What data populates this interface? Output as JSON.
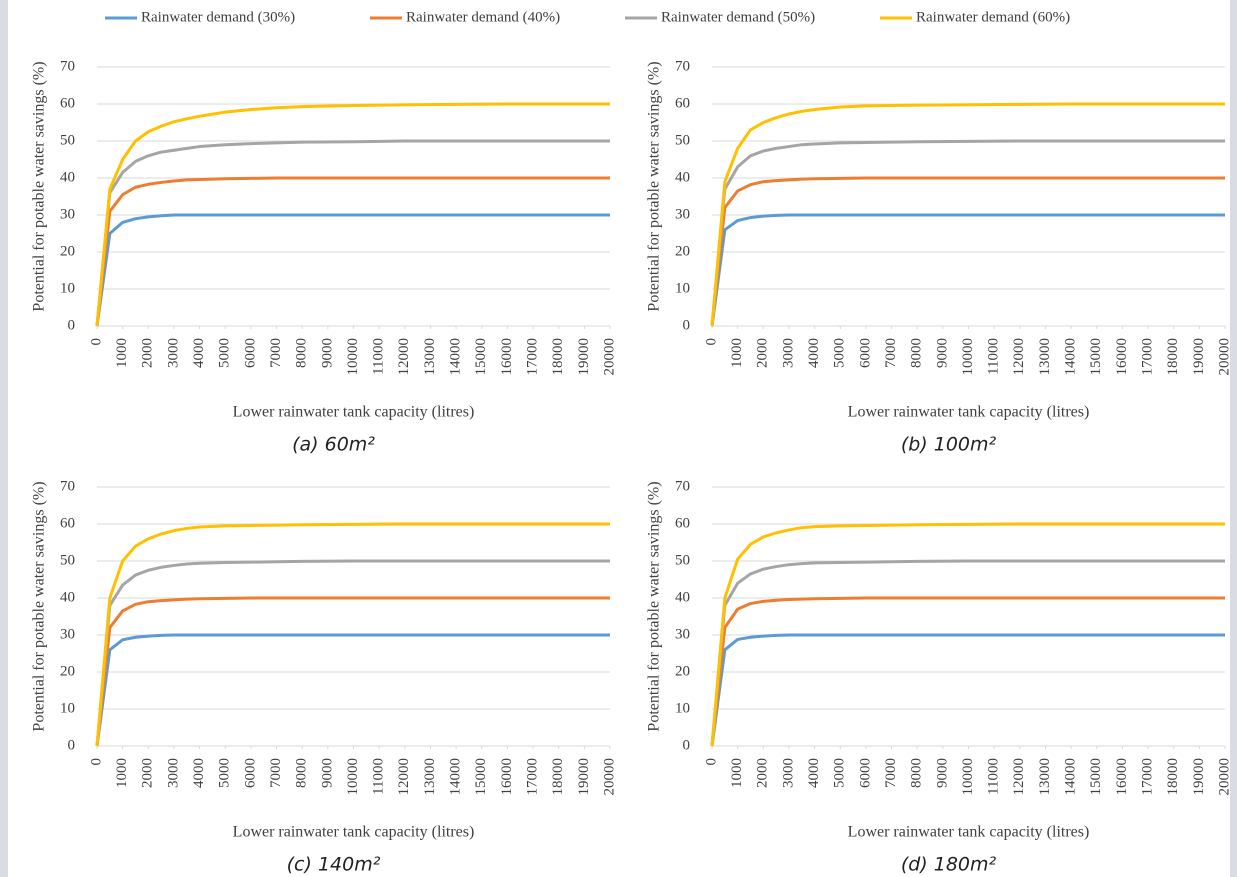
{
  "chart_data": [
    {
      "type": "line",
      "caption": "(a) 60m²",
      "x_label": "Lower rainwater tank capacity (litres)",
      "y_label": "Potential for potable water savings (%)",
      "x": [
        0,
        500,
        1000,
        1500,
        2000,
        2500,
        3000,
        3500,
        4000,
        5000,
        6000,
        7000,
        8000,
        10000,
        12000,
        14000,
        16000,
        18000,
        20000
      ],
      "xlim": [
        0,
        20000
      ],
      "xticks": [
        0,
        1000,
        2000,
        3000,
        4000,
        5000,
        6000,
        7000,
        8000,
        9000,
        10000,
        11000,
        12000,
        13000,
        14000,
        15000,
        16000,
        17000,
        18000,
        19000,
        20000
      ],
      "ylim": [
        0,
        70
      ],
      "yticks": [
        0,
        10,
        20,
        30,
        40,
        50,
        60,
        70
      ],
      "grid": true,
      "series": [
        {
          "name": "Rainwater demand (30%)",
          "color": "#5b9bd5",
          "values": [
            0,
            25,
            28,
            29,
            29.5,
            29.8,
            30,
            30,
            30,
            30,
            30,
            30,
            30,
            30,
            30,
            30,
            30,
            30,
            30
          ]
        },
        {
          "name": "Rainwater demand (40%)",
          "color": "#ed7d31",
          "values": [
            0,
            31,
            35.5,
            37.5,
            38.3,
            38.8,
            39.2,
            39.5,
            39.6,
            39.8,
            39.9,
            40,
            40,
            40,
            40,
            40,
            40,
            40,
            40
          ]
        },
        {
          "name": "Rainwater demand (50%)",
          "color": "#a5a5a5",
          "values": [
            0,
            36,
            41.5,
            44.5,
            46,
            47,
            47.5,
            48,
            48.5,
            49,
            49.3,
            49.5,
            49.7,
            49.8,
            50,
            50,
            50,
            50,
            50
          ]
        },
        {
          "name": "Rainwater demand (60%)",
          "color": "#ffc000",
          "values": [
            0,
            37,
            45,
            50,
            52.5,
            54,
            55.2,
            56,
            56.7,
            57.8,
            58.5,
            59,
            59.3,
            59.6,
            59.8,
            59.9,
            60,
            60,
            60
          ]
        }
      ]
    },
    {
      "type": "line",
      "caption": "(b) 100m²",
      "x_label": "Lower rainwater tank capacity (litres)",
      "y_label": "Potential for potable water savings (%)",
      "x": [
        0,
        500,
        1000,
        1500,
        2000,
        2500,
        3000,
        3500,
        4000,
        5000,
        6000,
        7000,
        8000,
        10000,
        12000,
        14000,
        16000,
        18000,
        20000
      ],
      "xlim": [
        0,
        20000
      ],
      "xticks": [
        0,
        1000,
        2000,
        3000,
        4000,
        5000,
        6000,
        7000,
        8000,
        9000,
        10000,
        11000,
        12000,
        13000,
        14000,
        15000,
        16000,
        17000,
        18000,
        19000,
        20000
      ],
      "ylim": [
        0,
        70
      ],
      "yticks": [
        0,
        10,
        20,
        30,
        40,
        50,
        60,
        70
      ],
      "grid": true,
      "series": [
        {
          "name": "Rainwater demand (30%)",
          "color": "#5b9bd5",
          "values": [
            0,
            26,
            28.5,
            29.3,
            29.7,
            29.9,
            30,
            30,
            30,
            30,
            30,
            30,
            30,
            30,
            30,
            30,
            30,
            30,
            30
          ]
        },
        {
          "name": "Rainwater demand (40%)",
          "color": "#ed7d31",
          "values": [
            0,
            32,
            36.5,
            38.2,
            39,
            39.3,
            39.5,
            39.7,
            39.8,
            39.9,
            40,
            40,
            40,
            40,
            40,
            40,
            40,
            40,
            40
          ]
        },
        {
          "name": "Rainwater demand (50%)",
          "color": "#a5a5a5",
          "values": [
            0,
            37,
            43,
            46,
            47.3,
            48,
            48.5,
            49,
            49.2,
            49.5,
            49.6,
            49.7,
            49.8,
            49.9,
            50,
            50,
            50,
            50,
            50
          ]
        },
        {
          "name": "Rainwater demand (60%)",
          "color": "#ffc000",
          "values": [
            0,
            39,
            48,
            53,
            55,
            56.3,
            57.3,
            58,
            58.5,
            59.2,
            59.5,
            59.6,
            59.7,
            59.8,
            59.9,
            60,
            60,
            60,
            60
          ]
        }
      ]
    },
    {
      "type": "line",
      "caption": "(c) 140m²",
      "x_label": "Lower rainwater tank capacity (litres)",
      "y_label": "Potential for potable water savings (%)",
      "x": [
        0,
        500,
        1000,
        1500,
        2000,
        2500,
        3000,
        3500,
        4000,
        5000,
        6000,
        7000,
        8000,
        10000,
        12000,
        14000,
        16000,
        18000,
        20000
      ],
      "xlim": [
        0,
        20000
      ],
      "xticks": [
        0,
        1000,
        2000,
        3000,
        4000,
        5000,
        6000,
        7000,
        8000,
        9000,
        10000,
        11000,
        12000,
        13000,
        14000,
        15000,
        16000,
        17000,
        18000,
        19000,
        20000
      ],
      "ylim": [
        0,
        70
      ],
      "yticks": [
        0,
        10,
        20,
        30,
        40,
        50,
        60,
        70
      ],
      "grid": true,
      "series": [
        {
          "name": "Rainwater demand (30%)",
          "color": "#5b9bd5",
          "values": [
            0,
            26,
            28.7,
            29.4,
            29.7,
            29.9,
            30,
            30,
            30,
            30,
            30,
            30,
            30,
            30,
            30,
            30,
            30,
            30,
            30
          ]
        },
        {
          "name": "Rainwater demand (40%)",
          "color": "#ed7d31",
          "values": [
            0,
            32,
            36.5,
            38.3,
            39,
            39.3,
            39.5,
            39.7,
            39.8,
            39.9,
            40,
            40,
            40,
            40,
            40,
            40,
            40,
            40,
            40
          ]
        },
        {
          "name": "Rainwater demand (50%)",
          "color": "#a5a5a5",
          "values": [
            0,
            38,
            43.5,
            46.2,
            47.5,
            48.3,
            48.8,
            49.2,
            49.4,
            49.6,
            49.7,
            49.8,
            49.9,
            50,
            50,
            50,
            50,
            50,
            50
          ]
        },
        {
          "name": "Rainwater demand (60%)",
          "color": "#ffc000",
          "values": [
            0,
            40,
            50,
            54,
            56,
            57.3,
            58.2,
            58.8,
            59.2,
            59.5,
            59.6,
            59.7,
            59.8,
            59.9,
            60,
            60,
            60,
            60,
            60
          ]
        }
      ]
    },
    {
      "type": "line",
      "caption": "(d) 180m²",
      "x_label": "Lower rainwater tank capacity (litres)",
      "y_label": "Potential for potable water savings (%)",
      "x": [
        0,
        500,
        1000,
        1500,
        2000,
        2500,
        3000,
        3500,
        4000,
        5000,
        6000,
        7000,
        8000,
        10000,
        12000,
        14000,
        16000,
        18000,
        20000
      ],
      "xlim": [
        0,
        20000
      ],
      "xticks": [
        0,
        1000,
        2000,
        3000,
        4000,
        5000,
        6000,
        7000,
        8000,
        9000,
        10000,
        11000,
        12000,
        13000,
        14000,
        15000,
        16000,
        17000,
        18000,
        19000,
        20000
      ],
      "ylim": [
        0,
        70
      ],
      "yticks": [
        0,
        10,
        20,
        30,
        40,
        50,
        60,
        70
      ],
      "grid": true,
      "series": [
        {
          "name": "Rainwater demand (30%)",
          "color": "#5b9bd5",
          "values": [
            0,
            26,
            28.8,
            29.4,
            29.7,
            29.9,
            30,
            30,
            30,
            30,
            30,
            30,
            30,
            30,
            30,
            30,
            30,
            30,
            30
          ]
        },
        {
          "name": "Rainwater demand (40%)",
          "color": "#ed7d31",
          "values": [
            0,
            32,
            37,
            38.5,
            39.1,
            39.4,
            39.6,
            39.7,
            39.8,
            39.9,
            40,
            40,
            40,
            40,
            40,
            40,
            40,
            40,
            40
          ]
        },
        {
          "name": "Rainwater demand (50%)",
          "color": "#a5a5a5",
          "values": [
            0,
            38,
            44,
            46.5,
            47.8,
            48.5,
            49,
            49.3,
            49.5,
            49.6,
            49.7,
            49.8,
            49.9,
            50,
            50,
            50,
            50,
            50,
            50
          ]
        },
        {
          "name": "Rainwater demand (60%)",
          "color": "#ffc000",
          "values": [
            0,
            40,
            50.5,
            54.5,
            56.5,
            57.6,
            58.4,
            59,
            59.3,
            59.5,
            59.6,
            59.7,
            59.8,
            59.9,
            60,
            60,
            60,
            60,
            60
          ]
        }
      ]
    }
  ]
}
